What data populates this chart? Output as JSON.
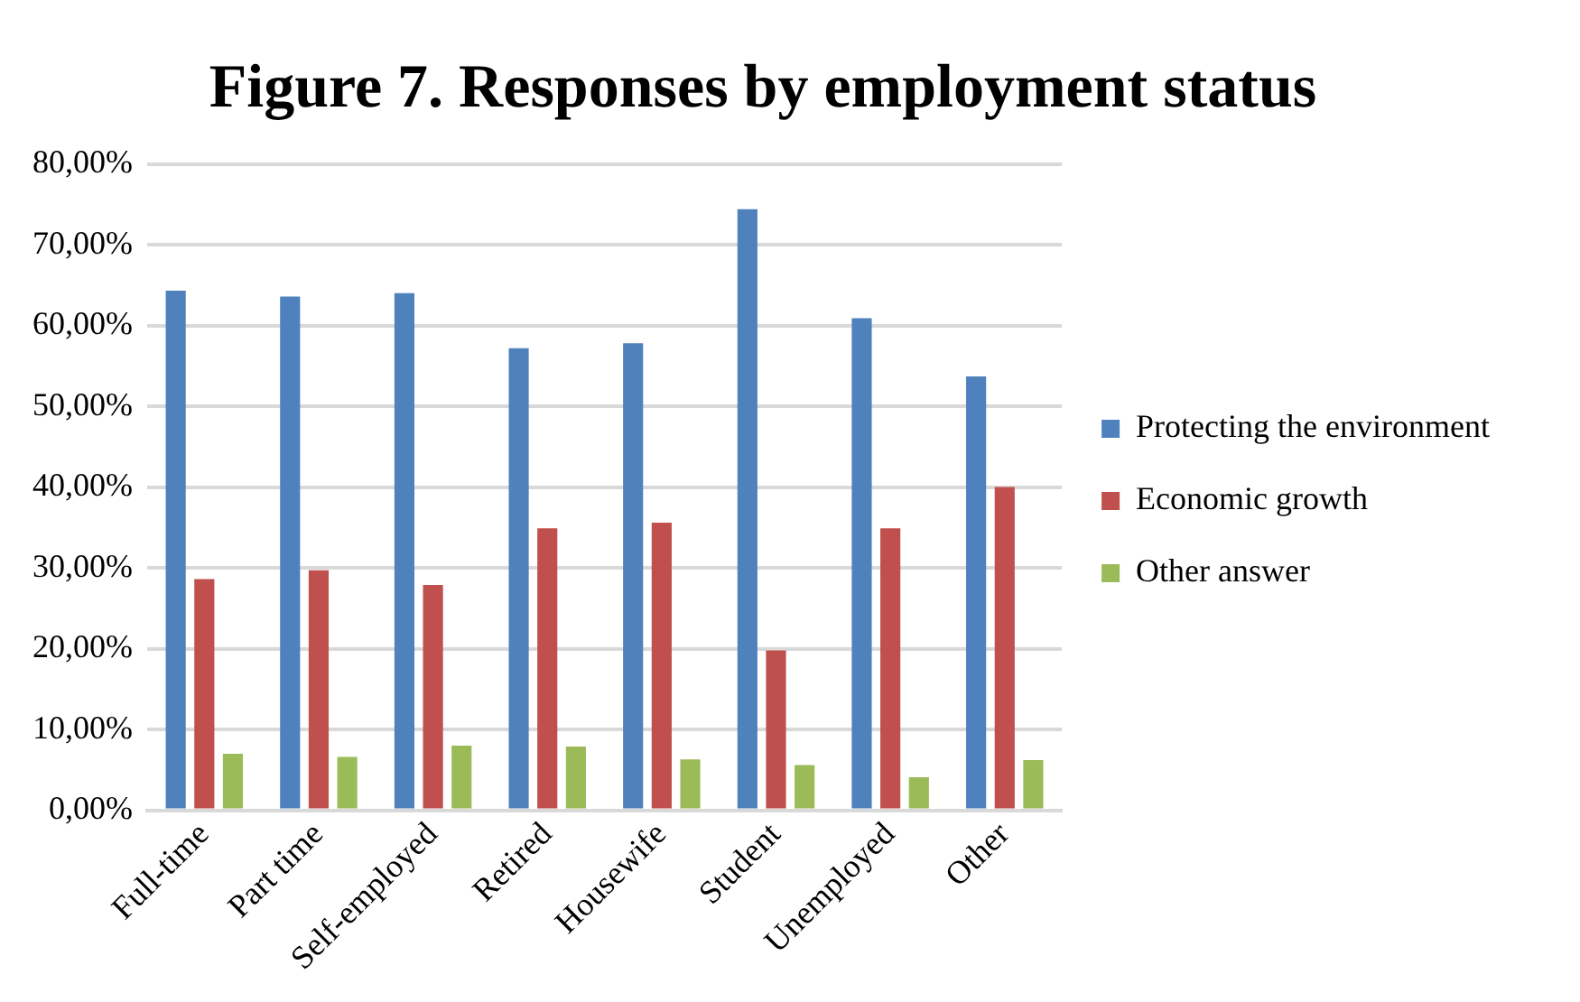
{
  "chart_data": {
    "type": "bar",
    "title": "Figure 7. Responses by employment status",
    "categories": [
      "Full-time",
      "Part time",
      "Self-employed",
      "Retired",
      "Housewife",
      "Student",
      "Unemployed",
      "Other"
    ],
    "series": [
      {
        "name": "Protecting the environment",
        "color": "#4f81bd",
        "values": [
          64.3,
          63.6,
          64.0,
          57.2,
          57.8,
          74.4,
          60.9,
          53.7
        ]
      },
      {
        "name": "Economic growth",
        "color": "#c0504d",
        "values": [
          28.6,
          29.7,
          27.9,
          34.9,
          35.6,
          19.8,
          34.9,
          40.0
        ]
      },
      {
        "name": "Other answer",
        "color": "#9bbb59",
        "values": [
          7.0,
          6.6,
          8.0,
          7.9,
          6.3,
          5.6,
          4.1,
          6.2
        ]
      }
    ],
    "ylim": [
      0,
      80
    ],
    "yticks": [
      {
        "value": 0,
        "label": "0,00%"
      },
      {
        "value": 10,
        "label": "10,00%"
      },
      {
        "value": 20,
        "label": "20,00%"
      },
      {
        "value": 30,
        "label": "30,00%"
      },
      {
        "value": 40,
        "label": "40,00%"
      },
      {
        "value": 50,
        "label": "50,00%"
      },
      {
        "value": 60,
        "label": "60,00%"
      },
      {
        "value": 70,
        "label": "70,00%"
      },
      {
        "value": 80,
        "label": "80,00%"
      }
    ],
    "grid": "y",
    "legend": "right"
  }
}
